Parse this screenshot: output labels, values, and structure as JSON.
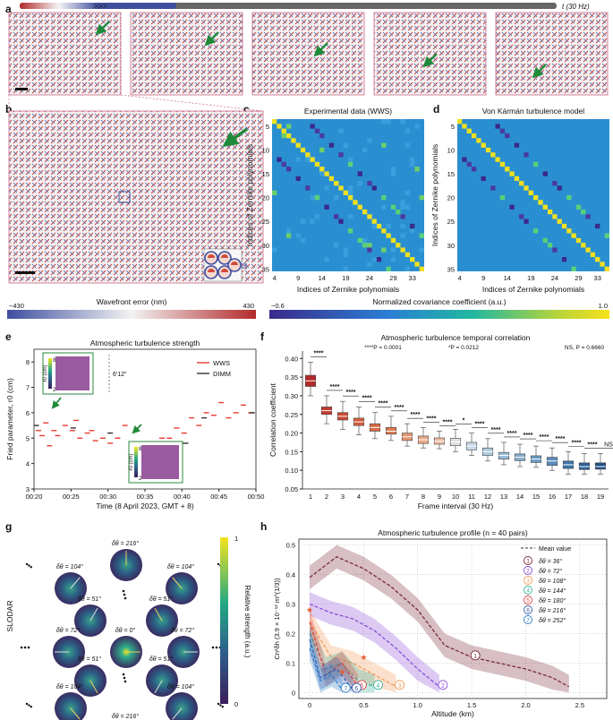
{
  "panel_letters": {
    "a": "a",
    "b": "b",
    "c": "c",
    "d": "d",
    "e": "e",
    "f": "f",
    "g": "g",
    "h": "h"
  },
  "a": {
    "time_label": "t (30 Hz)"
  },
  "b": {
    "inset_label": "δθ"
  },
  "c": {
    "title": "Experimental data (WWS)",
    "ylabel": "Indices of Zernike polynomials",
    "xlabel": "Indices of Zernike polynomials",
    "yticks": [
      "5",
      "10",
      "15",
      "20",
      "25",
      "30",
      "35"
    ],
    "xticks": [
      "4",
      "9",
      "14",
      "19",
      "24",
      "29",
      "33"
    ]
  },
  "d": {
    "title": "Von Kármán turbulence model",
    "ylabel": "Indices of Zernike polynomials",
    "xlabel": "Indices of Zernike polynomials",
    "yticks": [
      "5",
      "10",
      "15",
      "20",
      "25",
      "30",
      "35"
    ],
    "xticks": [
      "4",
      "9",
      "14",
      "19",
      "24",
      "29",
      "33"
    ]
  },
  "colorbars": {
    "wavefront": {
      "label": "Wavefront error (nm)",
      "min": "−430",
      "max": "430"
    },
    "covariance": {
      "label": "Normalized covariance coefficient (a.u.)",
      "min": "−0.6",
      "max": "1.0"
    }
  },
  "colors": {
    "dark_red": "#b22a2a",
    "mid_blue": "#6fa3cf",
    "wws_red": "#e83d2f",
    "dimm_black": "#333333"
  },
  "chart_data": [
    {
      "panel": "e",
      "type": "scatter",
      "title": "Atmospheric turbulence strength",
      "xlabel": "Time (8 April 2023, GMT + 8)",
      "ylabel": "Fried parameter, r0 (cm)",
      "xticks": [
        "00:20",
        "00:25",
        "00:30",
        "00:35",
        "00:40",
        "00:45",
        "00:50"
      ],
      "yticks": [
        "3",
        "4",
        "5",
        "6",
        "7",
        "8"
      ],
      "xlim": [
        20,
        50
      ],
      "ylim": [
        3,
        8.5
      ],
      "legend": [
        "WWS",
        "DIMM"
      ],
      "inset_label": "r0 (cm)",
      "inset_ticks": [
        "8",
        "2"
      ],
      "fov_label": "6'12\"",
      "series": [
        {
          "name": "WWS",
          "points": [
            [
              20.6,
              5.3
            ],
            [
              21.1,
              5.1
            ],
            [
              21.6,
              5.6
            ],
            [
              22.1,
              4.7
            ],
            [
              22.7,
              5.3
            ],
            [
              23.2,
              5.1
            ],
            [
              24.2,
              5.5
            ],
            [
              25.2,
              5.3
            ],
            [
              25.7,
              5.7
            ],
            [
              26.2,
              5.0
            ],
            [
              27.2,
              5.2
            ],
            [
              27.8,
              5.3
            ],
            [
              28.3,
              4.9
            ],
            [
              29.3,
              5.0
            ],
            [
              30.3,
              4.8
            ],
            [
              31.3,
              5.0
            ],
            [
              32.3,
              5.5
            ],
            [
              33.3,
              4.6
            ],
            [
              34.3,
              4.4
            ],
            [
              35.3,
              4.6
            ],
            [
              36.3,
              4.8
            ],
            [
              37.3,
              5.0
            ],
            [
              38.3,
              5.0
            ],
            [
              39.3,
              5.4
            ],
            [
              40.3,
              5.2
            ],
            [
              41.3,
              5.8
            ],
            [
              42.3,
              5.5
            ],
            [
              43.3,
              6.0
            ],
            [
              44.3,
              5.9
            ],
            [
              45.3,
              6.4
            ],
            [
              46.3,
              5.8
            ],
            [
              47.3,
              6.0
            ],
            [
              48.3,
              6.3
            ],
            [
              49.3,
              6.0
            ]
          ]
        },
        {
          "name": "DIMM",
          "points": [
            [
              20.3,
              5.5
            ],
            [
              25.3,
              5.4
            ],
            [
              30.3,
              5.2
            ],
            [
              35.3,
              4.3
            ],
            [
              40.5,
              4.8
            ],
            [
              43.0,
              5.8
            ],
            [
              49.5,
              6.0
            ]
          ]
        }
      ]
    },
    {
      "panel": "f",
      "type": "box",
      "title": "Atmospheric turbulence temporal correlation",
      "xlabel": "Frame interval (30 Hz)",
      "ylabel": "Correlation coefficient",
      "categories": [
        "1",
        "2",
        "3",
        "4",
        "5",
        "6",
        "7",
        "8",
        "9",
        "10",
        "11",
        "12",
        "13",
        "14",
        "15",
        "16",
        "17",
        "18",
        "19"
      ],
      "yticks": [
        "0.05",
        "0.10",
        "0.15",
        "0.20",
        "0.25",
        "0.30",
        "0.35",
        "0.40"
      ],
      "ylim": [
        0.05,
        0.42
      ],
      "medians": [
        0.34,
        0.26,
        0.245,
        0.23,
        0.215,
        0.205,
        0.19,
        0.182,
        0.178,
        0.176,
        0.165,
        0.15,
        0.14,
        0.135,
        0.13,
        0.125,
        0.115,
        0.11,
        0.11
      ],
      "q1": [
        0.325,
        0.25,
        0.235,
        0.22,
        0.205,
        0.197,
        0.18,
        0.172,
        0.17,
        0.166,
        0.155,
        0.14,
        0.13,
        0.126,
        0.121,
        0.113,
        0.105,
        0.102,
        0.103
      ],
      "q3": [
        0.355,
        0.27,
        0.255,
        0.24,
        0.225,
        0.215,
        0.2,
        0.192,
        0.187,
        0.186,
        0.175,
        0.16,
        0.148,
        0.144,
        0.139,
        0.135,
        0.125,
        0.12,
        0.12
      ],
      "whisker_low": [
        0.3,
        0.225,
        0.21,
        0.195,
        0.185,
        0.18,
        0.165,
        0.16,
        0.158,
        0.15,
        0.14,
        0.125,
        0.115,
        0.11,
        0.108,
        0.1,
        0.09,
        0.09,
        0.09
      ],
      "whisker_high": [
        0.39,
        0.3,
        0.285,
        0.27,
        0.255,
        0.245,
        0.225,
        0.215,
        0.205,
        0.21,
        0.2,
        0.185,
        0.175,
        0.17,
        0.165,
        0.16,
        0.15,
        0.145,
        0.145
      ],
      "significance": [
        "****",
        "****",
        "****",
        "****",
        "****",
        "****",
        "****",
        "****",
        "****",
        "*",
        "****",
        "****",
        "****",
        "****",
        "****",
        "****",
        "****",
        "****",
        "NS"
      ],
      "annotations": [
        "****P = 0.0001",
        "*P = 0.0212",
        "NS, P = 0.6660"
      ]
    },
    {
      "panel": "h",
      "type": "line",
      "title": "Atmospheric turbulence profile (n = 40 pairs)",
      "xlabel": "Altitude (km)",
      "ylabel": "Cn²δh (3.9 × 10⁻¹² m^(1/3))",
      "xticks": [
        "0",
        "0.5",
        "1.0",
        "1.5",
        "2.0",
        "2.5"
      ],
      "yticks": [
        "0",
        "0.1",
        "0.2",
        "0.3",
        "0.4",
        "0.5"
      ],
      "xlim": [
        -0.1,
        2.75
      ],
      "ylim": [
        -0.02,
        0.52
      ],
      "legend_title": "Mean value",
      "series": [
        {
          "name": "δθ = 36°",
          "marker": "1",
          "color": "#7a2a3a",
          "x": [
            0,
            0.25,
            0.5,
            0.75,
            1.0,
            1.25,
            1.5,
            1.75,
            2.0,
            2.25,
            2.4
          ],
          "y": [
            0.39,
            0.46,
            0.42,
            0.36,
            0.28,
            0.16,
            0.12,
            0.1,
            0.08,
            0.05,
            0.02
          ]
        },
        {
          "name": "δθ = 72°",
          "marker": "2",
          "color": "#8a4fd6",
          "x": [
            0,
            0.2,
            0.4,
            0.6,
            0.8,
            1.0,
            1.2
          ],
          "y": [
            0.3,
            0.27,
            0.25,
            0.21,
            0.15,
            0.08,
            0.02
          ]
        },
        {
          "name": "δθ = 108°",
          "marker": "3",
          "color": "#f29a5a",
          "x": [
            0,
            0.2,
            0.4,
            0.6,
            0.8
          ],
          "y": [
            0.24,
            0.12,
            0.1,
            0.06,
            0.02
          ]
        },
        {
          "name": "δθ = 144°",
          "marker": "4",
          "color": "#3bb29b",
          "x": [
            0,
            0.15,
            0.3,
            0.45,
            0.6
          ],
          "y": [
            0.2,
            0.08,
            0.1,
            0.04,
            0.02
          ]
        },
        {
          "name": "δθ = 180°",
          "marker": "5",
          "color": "#e04545",
          "x": [
            0,
            0.15,
            0.3,
            0.45
          ],
          "y": [
            0.24,
            0.06,
            0.1,
            0.02
          ]
        },
        {
          "name": "δθ = 216°",
          "marker": "6",
          "color": "#3a5aa8",
          "x": [
            0,
            0.1,
            0.25,
            0.4
          ],
          "y": [
            0.18,
            0.05,
            0.08,
            0.01
          ]
        },
        {
          "name": "δθ = 252°",
          "marker": "7",
          "color": "#2f7fc7",
          "x": [
            0,
            0.1,
            0.2,
            0.3
          ],
          "y": [
            0.15,
            0.04,
            0.06,
            0.01
          ]
        }
      ]
    }
  ],
  "g": {
    "side_label": "SLODAR",
    "colorbar_label": "Relative strength (a.u.)",
    "colorbar_max": "1",
    "colorbar_min": "0",
    "disks": [
      "δθ = 216°",
      "δθ = 104°",
      "δθ = 104°",
      "δθ = 51°",
      "δθ = 51°",
      "δθ = 72°",
      "δθ = 0°",
      "δθ = 72°",
      "δθ = 51°",
      "δθ = 51°",
      "δθ = 104°",
      "δθ = 104°",
      "δθ = 216°"
    ]
  }
}
